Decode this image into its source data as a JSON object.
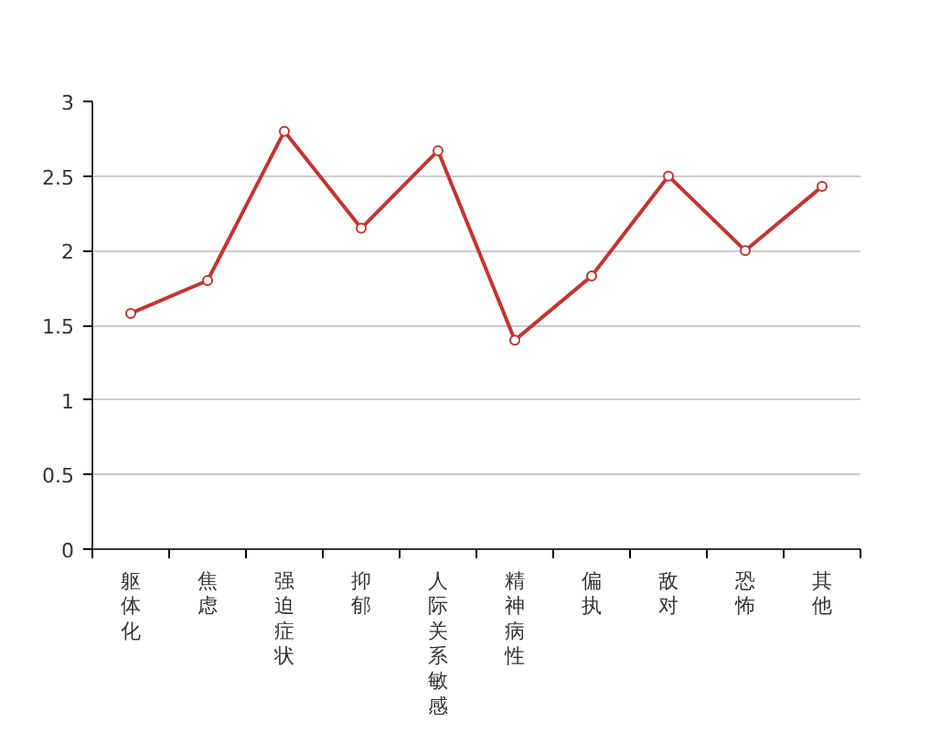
{
  "chart_data": {
    "type": "line",
    "categories": [
      "躯体化",
      "焦虑",
      "强迫症状",
      "抑郁",
      "人际关系敏感",
      "精神病性",
      "偏执",
      "敌对",
      "恐怖",
      "其他"
    ],
    "series": [
      {
        "color": "#c23531",
        "values": [
          1.58,
          1.8,
          2.8,
          2.15,
          2.67,
          1.4,
          1.83,
          2.5,
          2.0,
          2.43
        ]
      }
    ],
    "ylim": [
      0,
      3
    ],
    "yticks": [
      0,
      0.5,
      1,
      1.5,
      2,
      2.5,
      3
    ],
    "grid": "y",
    "marker": "circle",
    "line_style": "solid"
  }
}
